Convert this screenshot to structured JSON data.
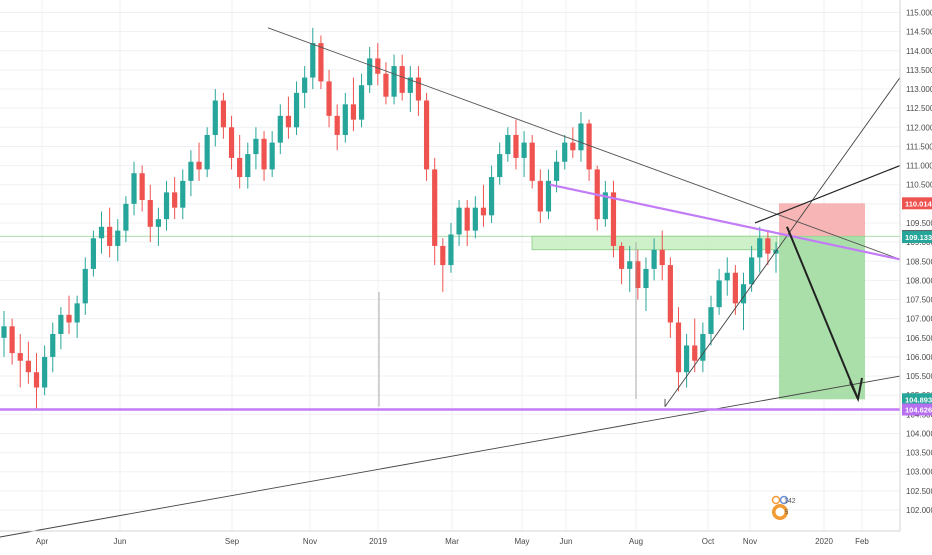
{
  "chart_data": {
    "type": "candlestick",
    "ylim": [
      101.8,
      115.2
    ],
    "y_ticks": [
      "102.000",
      "102.500",
      "103.000",
      "103.500",
      "104.000",
      "104.500",
      "105.000",
      "105.500",
      "106.000",
      "106.500",
      "107.000",
      "107.500",
      "108.000",
      "108.500",
      "109.000",
      "109.500",
      "110.000",
      "110.500",
      "111.000",
      "111.500",
      "112.000",
      "112.500",
      "113.000",
      "113.500",
      "114.000",
      "114.500",
      "115.000"
    ],
    "x_ticks": [
      "Apr",
      "Jun",
      "Sep",
      "Nov",
      "2019",
      "Mar",
      "May",
      "Jun",
      "Aug",
      "Oct",
      "Nov",
      "2020",
      "Feb"
    ],
    "grid": true,
    "colors": {
      "up": "#26a69a",
      "down": "#ef5350",
      "trendline": "#222222",
      "purple": "#c27cf5",
      "stop_zone": "#f7a8a8",
      "target_zone": "#9bd99b"
    },
    "price_tags": [
      {
        "value": 110.014,
        "label": "110.014",
        "color": "#ef5350"
      },
      {
        "value": 109.154,
        "label": "109.154",
        "color": "#3a3a3a"
      },
      {
        "value": 109.133,
        "label": "109.133",
        "color": "#26a69a"
      },
      {
        "value": 104.893,
        "label": "104.893",
        "color": "#26a69a"
      },
      {
        "value": 104.626,
        "label": "104.626",
        "color": "#b76ef0"
      }
    ],
    "series": [
      {
        "values": [
          [
            106.5,
            107.2,
            106.0,
            106.8
          ],
          [
            106.8,
            107.0,
            105.8,
            106.1
          ],
          [
            106.1,
            106.6,
            105.2,
            105.9
          ],
          [
            105.9,
            106.4,
            105.3,
            105.6
          ],
          [
            105.6,
            106.1,
            104.6,
            105.2
          ],
          [
            105.2,
            106.3,
            105.0,
            106.0
          ],
          [
            106.0,
            106.9,
            105.6,
            106.6
          ],
          [
            106.6,
            107.3,
            106.2,
            107.1
          ],
          [
            107.1,
            107.6,
            106.6,
            106.9
          ],
          [
            106.9,
            107.6,
            106.5,
            107.4
          ],
          [
            107.4,
            108.6,
            107.1,
            108.3
          ],
          [
            108.3,
            109.3,
            108.1,
            109.1
          ],
          [
            109.1,
            109.8,
            108.7,
            109.4
          ],
          [
            109.4,
            109.9,
            108.6,
            108.9
          ],
          [
            108.9,
            109.6,
            108.5,
            109.3
          ],
          [
            109.3,
            110.2,
            109.0,
            110.0
          ],
          [
            110.0,
            111.1,
            109.7,
            110.8
          ],
          [
            110.8,
            111.0,
            109.8,
            110.1
          ],
          [
            110.1,
            110.5,
            109.0,
            109.4
          ],
          [
            109.4,
            109.9,
            108.9,
            109.6
          ],
          [
            109.6,
            110.6,
            109.3,
            110.3
          ],
          [
            110.3,
            110.7,
            109.6,
            109.9
          ],
          [
            109.9,
            110.9,
            109.6,
            110.6
          ],
          [
            110.6,
            111.4,
            110.2,
            111.1
          ],
          [
            111.1,
            111.6,
            110.6,
            110.9
          ],
          [
            110.9,
            112.0,
            110.7,
            111.8
          ],
          [
            111.8,
            113.0,
            111.5,
            112.7
          ],
          [
            112.7,
            112.9,
            111.7,
            112.0
          ],
          [
            112.0,
            112.3,
            110.9,
            111.2
          ],
          [
            111.2,
            111.8,
            110.4,
            110.7
          ],
          [
            110.7,
            111.6,
            110.4,
            111.3
          ],
          [
            111.3,
            112.0,
            110.9,
            111.7
          ],
          [
            111.7,
            111.9,
            110.6,
            110.9
          ],
          [
            110.9,
            111.9,
            110.7,
            111.6
          ],
          [
            111.6,
            112.6,
            111.3,
            112.3
          ],
          [
            112.3,
            112.8,
            111.7,
            112.0
          ],
          [
            112.0,
            113.2,
            111.8,
            112.9
          ],
          [
            112.9,
            113.6,
            112.5,
            113.3
          ],
          [
            113.3,
            114.6,
            113.0,
            114.2
          ],
          [
            114.2,
            114.4,
            113.0,
            113.2
          ],
          [
            113.2,
            113.5,
            112.0,
            112.3
          ],
          [
            112.3,
            112.6,
            111.4,
            111.8
          ],
          [
            111.8,
            112.9,
            111.6,
            112.6
          ],
          [
            112.6,
            113.3,
            111.9,
            112.2
          ],
          [
            112.2,
            113.4,
            112.0,
            113.1
          ],
          [
            113.1,
            114.1,
            112.9,
            113.8
          ],
          [
            113.8,
            114.2,
            113.1,
            113.4
          ],
          [
            113.4,
            113.7,
            112.6,
            112.8
          ],
          [
            112.8,
            113.9,
            112.6,
            113.6
          ],
          [
            113.6,
            113.9,
            112.7,
            112.9
          ],
          [
            112.9,
            113.6,
            112.4,
            113.3
          ],
          [
            113.3,
            113.6,
            112.3,
            112.7
          ],
          [
            112.7,
            112.9,
            110.6,
            110.9
          ],
          [
            110.9,
            111.2,
            108.4,
            108.9
          ],
          [
            108.9,
            109.1,
            107.7,
            108.4
          ],
          [
            108.4,
            109.5,
            108.2,
            109.2
          ],
          [
            109.2,
            110.1,
            108.9,
            109.9
          ],
          [
            109.9,
            110.1,
            108.9,
            109.3
          ],
          [
            109.3,
            110.2,
            109.1,
            109.9
          ],
          [
            109.9,
            110.5,
            109.4,
            109.7
          ],
          [
            109.7,
            111.0,
            109.5,
            110.7
          ],
          [
            110.7,
            111.6,
            110.5,
            111.3
          ],
          [
            111.3,
            112.0,
            111.1,
            111.8
          ],
          [
            111.8,
            112.2,
            110.9,
            111.2
          ],
          [
            111.2,
            111.9,
            110.7,
            111.6
          ],
          [
            111.6,
            111.8,
            110.4,
            110.6
          ],
          [
            110.6,
            110.9,
            109.5,
            109.8
          ],
          [
            109.8,
            110.9,
            109.6,
            110.6
          ],
          [
            110.6,
            111.4,
            110.3,
            111.1
          ],
          [
            111.1,
            111.8,
            110.9,
            111.6
          ],
          [
            111.6,
            112.0,
            111.2,
            111.4
          ],
          [
            111.4,
            112.4,
            111.1,
            112.1
          ],
          [
            112.1,
            112.2,
            110.6,
            110.9
          ],
          [
            110.9,
            111.0,
            109.3,
            109.6
          ],
          [
            109.6,
            110.6,
            109.4,
            110.3
          ],
          [
            110.3,
            110.6,
            108.6,
            108.9
          ],
          [
            108.9,
            109.0,
            107.9,
            108.3
          ],
          [
            108.3,
            108.9,
            107.7,
            108.5
          ],
          [
            108.5,
            108.8,
            107.5,
            107.8
          ],
          [
            107.8,
            108.6,
            107.2,
            108.3
          ],
          [
            108.3,
            109.1,
            108.0,
            108.8
          ],
          [
            108.8,
            109.3,
            108.0,
            108.4
          ],
          [
            108.4,
            108.6,
            106.5,
            106.9
          ],
          [
            106.9,
            107.3,
            105.1,
            105.6
          ],
          [
            105.6,
            106.6,
            105.2,
            106.3
          ],
          [
            106.3,
            107.0,
            105.6,
            105.9
          ],
          [
            105.9,
            106.9,
            105.6,
            106.6
          ],
          [
            106.6,
            107.6,
            106.3,
            107.3
          ],
          [
            107.3,
            108.3,
            107.1,
            108.0
          ],
          [
            108.0,
            108.6,
            107.6,
            108.2
          ],
          [
            108.2,
            108.4,
            107.1,
            107.4
          ],
          [
            107.4,
            108.2,
            106.7,
            107.9
          ],
          [
            107.9,
            108.9,
            107.7,
            108.6
          ],
          [
            108.6,
            109.4,
            108.2,
            109.1
          ],
          [
            109.1,
            109.3,
            108.4,
            108.7
          ],
          [
            108.7,
            109.0,
            108.2,
            108.8
          ]
        ]
      }
    ]
  },
  "watermark": {
    "label": "TradingView"
  }
}
